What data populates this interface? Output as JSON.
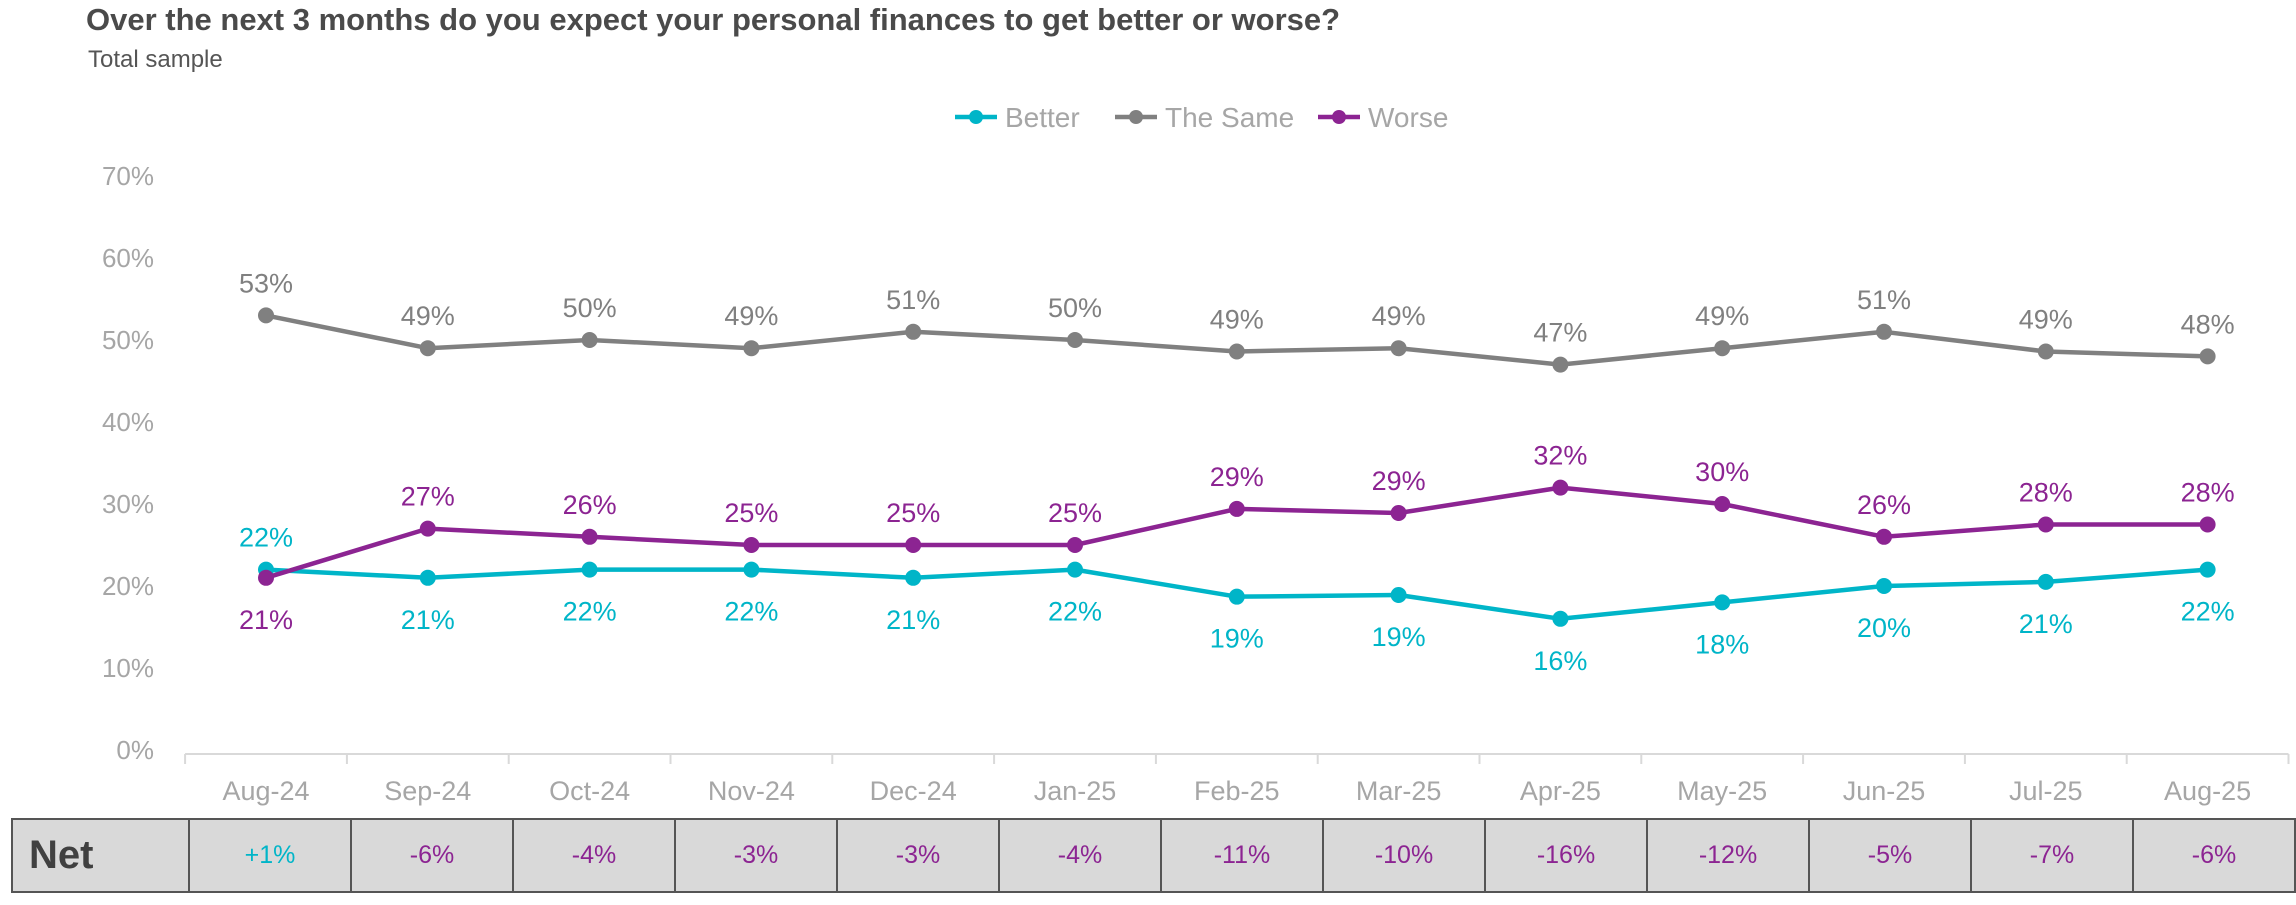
{
  "header": {
    "title": "Over the next 3 months do you expect your personal finances to get better or worse?",
    "subtitle": "Total sample"
  },
  "colors": {
    "better": "#00b5c8",
    "same": "#808080",
    "worse": "#8c2492",
    "axis_text": "#a6a6a6"
  },
  "chart_data": {
    "type": "line",
    "title": "Over the next 3 months do you expect your personal finances to get better or worse?",
    "subtitle": "Total sample",
    "categories": [
      "Aug-24",
      "Sep-24",
      "Oct-24",
      "Nov-24",
      "Dec-24",
      "Jan-25",
      "Feb-25",
      "Mar-25",
      "Apr-25",
      "May-25",
      "Jun-25",
      "Jul-25",
      "Aug-25"
    ],
    "y_ticks": [
      "0%",
      "10%",
      "20%",
      "30%",
      "40%",
      "50%",
      "60%",
      "70%"
    ],
    "ylim": [
      0,
      70
    ],
    "legend_position": "top-center",
    "grid": false,
    "series": [
      {
        "name": "Better",
        "color": "#00b5c8",
        "label_position": "below",
        "values": [
          22,
          21,
          22,
          22,
          21,
          22,
          18.7,
          18.9,
          16,
          18,
          20,
          20.5,
          22
        ],
        "labels": [
          "22%",
          "21%",
          "22%",
          "22%",
          "21%",
          "22%",
          "19%",
          "19%",
          "16%",
          "18%",
          "20%",
          "21%",
          "22%"
        ]
      },
      {
        "name": "The Same",
        "color": "#808080",
        "label_position": "above",
        "values": [
          53,
          49,
          50,
          49,
          51,
          50,
          48.6,
          49,
          47,
          49,
          51,
          48.6,
          48
        ],
        "labels": [
          "53%",
          "49%",
          "50%",
          "49%",
          "51%",
          "50%",
          "49%",
          "49%",
          "47%",
          "49%",
          "51%",
          "49%",
          "48%"
        ]
      },
      {
        "name": "Worse",
        "color": "#8c2492",
        "label_position": "above",
        "values": [
          21,
          27,
          26,
          25,
          25,
          25,
          29.4,
          28.9,
          32,
          30,
          26,
          27.5,
          27.5
        ],
        "labels": [
          "21%",
          "27%",
          "26%",
          "25%",
          "25%",
          "25%",
          "29%",
          "29%",
          "32%",
          "30%",
          "26%",
          "28%",
          "28%"
        ]
      }
    ]
  },
  "net_row": {
    "label": "Net",
    "values": [
      "+1%",
      "-6%",
      "-4%",
      "-3%",
      "-3%",
      "-4%",
      "-11%",
      "-10%",
      "-16%",
      "-12%",
      "-5%",
      "-7%",
      "-6%"
    ],
    "colors": [
      "#00b5c8",
      "#8c2492",
      "#8c2492",
      "#8c2492",
      "#8c2492",
      "#8c2492",
      "#8c2492",
      "#8c2492",
      "#8c2492",
      "#8c2492",
      "#8c2492",
      "#8c2492",
      "#8c2492"
    ]
  }
}
